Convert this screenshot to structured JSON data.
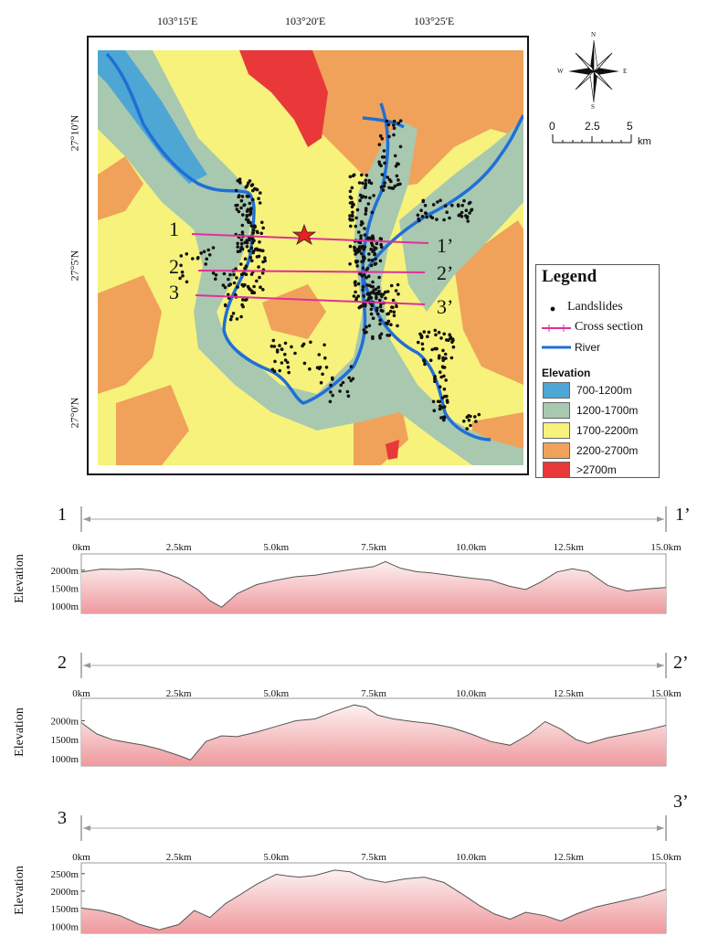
{
  "map": {
    "lon_labels": [
      "103°15'E",
      "103°20'E",
      "103°25'E"
    ],
    "lat_labels": [
      "27°10'N",
      "27°5'N",
      "27°0'N"
    ],
    "section_labels": [
      "1",
      "1’",
      "2",
      "2’",
      "3",
      "3’"
    ],
    "colors": {
      "elev_700_1200": "#4ea6d4",
      "elev_1200_1700": "#a8c8b0",
      "elev_1700_2200": "#f6f27c",
      "elev_2200_2700": "#f0a25a",
      "elev_2700_plus": "#e8383a",
      "river": "#1f6fd6",
      "cross_section": "#e0309a",
      "landslide": "#111111",
      "star": "#e82020"
    }
  },
  "compass": {
    "n": "N",
    "s": "S",
    "e": "E",
    "w": "W"
  },
  "scale_bar": {
    "labels": [
      "0",
      "2.5",
      "5"
    ],
    "unit": "km"
  },
  "legend": {
    "title": "Legend",
    "landslides": "Landslides",
    "cross_section": "Cross section",
    "river": "River",
    "elevation_title": "Elevation",
    "classes": [
      "700-1200m",
      "1200-1700m",
      "1700-2200m",
      "2200-2700m",
      ">2700m"
    ]
  },
  "profiles": [
    {
      "start": "1",
      "end": "1’",
      "ylabel": "Elevation",
      "x_ticks": [
        "0km",
        "2.5km",
        "5.0km",
        "7.5km",
        "10.0km",
        "12.5km",
        "15.0km"
      ],
      "y_ticks": [
        "2000m",
        "1500m",
        "1000m"
      ],
      "chart_data": {
        "type": "area",
        "x": [
          0,
          0.5,
          1,
          1.5,
          2,
          2.5,
          3,
          3.3,
          3.6,
          4,
          4.5,
          5,
          5.5,
          6,
          6.5,
          7,
          7.5,
          7.8,
          8.2,
          8.6,
          9,
          9.5,
          10,
          10.5,
          11,
          11.4,
          11.8,
          12.2,
          12.6,
          13,
          13.5,
          14,
          14.5,
          15
        ],
        "y": [
          1950,
          2030,
          2020,
          2040,
          1980,
          1780,
          1450,
          1150,
          970,
          1350,
          1600,
          1720,
          1820,
          1860,
          1950,
          2030,
          2100,
          2240,
          2050,
          1960,
          1920,
          1850,
          1780,
          1720,
          1550,
          1460,
          1680,
          1950,
          2040,
          1960,
          1580,
          1420,
          1480,
          1520
        ]
      }
    },
    {
      "start": "2",
      "end": "2’",
      "ylabel": "Elevation",
      "x_ticks": [
        "0km",
        "2.5km",
        "5.0km",
        "7.5km",
        "10.0km",
        "12.5km",
        "15.0km"
      ],
      "y_ticks": [
        "2000m",
        "1500m",
        "1000m"
      ],
      "chart_data": {
        "type": "area",
        "x": [
          0,
          0.4,
          0.8,
          1.2,
          1.6,
          2,
          2.5,
          2.8,
          3.2,
          3.6,
          4,
          4.5,
          5,
          5.5,
          6,
          6.5,
          7,
          7.3,
          7.6,
          8,
          8.5,
          9,
          9.5,
          10,
          10.5,
          11,
          11.5,
          11.9,
          12.3,
          12.7,
          13,
          13.5,
          14,
          14.5,
          15
        ],
        "y": [
          1950,
          1650,
          1500,
          1420,
          1350,
          1250,
          1080,
          960,
          1450,
          1600,
          1580,
          1700,
          1850,
          2000,
          2050,
          2250,
          2420,
          2360,
          2150,
          2050,
          1980,
          1920,
          1820,
          1650,
          1450,
          1350,
          1650,
          1980,
          1780,
          1500,
          1400,
          1550,
          1650,
          1750,
          1880
        ]
      }
    },
    {
      "start": "3",
      "end": "3’",
      "ylabel": "Elevation",
      "x_ticks": [
        "0km",
        "2.5km",
        "5.0km",
        "7.5km",
        "10.0km",
        "12.5km",
        "15.0km"
      ],
      "y_ticks": [
        "2500m",
        "2000m",
        "1500m",
        "1000m"
      ],
      "chart_data": {
        "type": "area",
        "x": [
          0,
          0.5,
          1,
          1.5,
          2,
          2.5,
          2.9,
          3.3,
          3.7,
          4,
          4.5,
          5,
          5.3,
          5.6,
          6,
          6.5,
          6.9,
          7.3,
          7.8,
          8.3,
          8.8,
          9.3,
          9.8,
          10.2,
          10.6,
          11,
          11.4,
          11.9,
          12.3,
          12.7,
          13.2,
          13.8,
          14.4,
          15
        ],
        "y": [
          1520,
          1450,
          1300,
          1050,
          900,
          1050,
          1450,
          1250,
          1650,
          1850,
          2200,
          2480,
          2430,
          2400,
          2450,
          2600,
          2550,
          2350,
          2250,
          2350,
          2400,
          2250,
          1900,
          1600,
          1350,
          1200,
          1400,
          1300,
          1150,
          1350,
          1550,
          1700,
          1850,
          2050
        ]
      }
    }
  ]
}
